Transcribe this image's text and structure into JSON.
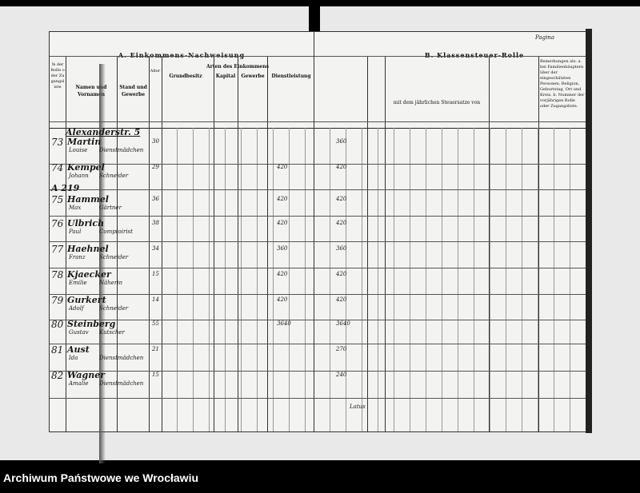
{
  "left_page": {
    "title": "A. Einkommens-Nachweisung",
    "section": "Arten des Einkommens",
    "groups": [
      "Grundbesitz",
      "Kapital",
      "Gewerbe",
      "Dienstleistung"
    ],
    "col_number": "№ der Rolle oder Zugangsliste",
    "col_name": "Namen und Vornamen",
    "col_stand": "Stand und Gewerbe",
    "col_age": "Alter"
  },
  "right_page": {
    "title": "B. Klassensteuer-Rolle",
    "corner_note": "Pagina",
    "remarks_header": "Bemerkungen als: a. bei Familienhäuptern über der eingeschätzten Personen: Religion, Geburtstag, Ort und Kreis. b. Nummer der vorjährigen Rolle oder Zugangsliste.",
    "subheader": "mit dem jährlichen Steuersatze von",
    "footer_sum_label": "Latus"
  },
  "annotation": "A 219",
  "header_note": "Alexanderstr. 5",
  "rows": [
    {
      "no": "73",
      "name": "Martin",
      "first": "Louise",
      "stand": "Dienstmädchen",
      "age": "30",
      "tax": "360"
    },
    {
      "no": "74",
      "name": "Kempel",
      "first": "Johann",
      "stand": "Schneider",
      "age": "29",
      "income": "420",
      "tax": "420"
    },
    {
      "no": "75",
      "name": "Hammel",
      "first": "Max",
      "stand": "Gärtner",
      "age": "36",
      "income": "420",
      "tax": "420"
    },
    {
      "no": "76",
      "name": "Ulbrich",
      "first": "Paul",
      "stand": "Comptoirist",
      "age": "38",
      "income": "420",
      "tax": "420"
    },
    {
      "no": "77",
      "name": "Haehnel",
      "first": "Franz",
      "stand": "Schneider",
      "age": "34",
      "income": "360",
      "tax": "360"
    },
    {
      "no": "78",
      "name": "Kjaecker",
      "first": "Emilie",
      "stand": "Näherin",
      "age": "15",
      "income": "420",
      "tax": "420"
    },
    {
      "no": "79",
      "name": "Gurkert",
      "first": "Adolf",
      "stand": "Schneider",
      "age": "14",
      "income": "420",
      "tax": "420"
    },
    {
      "no": "80",
      "name": "Steinberg",
      "first": "Gustav",
      "stand": "Kutscher",
      "age": "55",
      "income": "3640",
      "tax": "3640"
    },
    {
      "no": "81",
      "name": "Aust",
      "first": "Ida",
      "stand": "Dienstmädchen",
      "age": "21",
      "tax": "270"
    },
    {
      "no": "82",
      "name": "Wagner",
      "first": "Amalie",
      "stand": "Dienstmädchen",
      "age": "15",
      "tax": "240"
    }
  ],
  "footer": "Archiwum Państwowe we Wrocławiu"
}
